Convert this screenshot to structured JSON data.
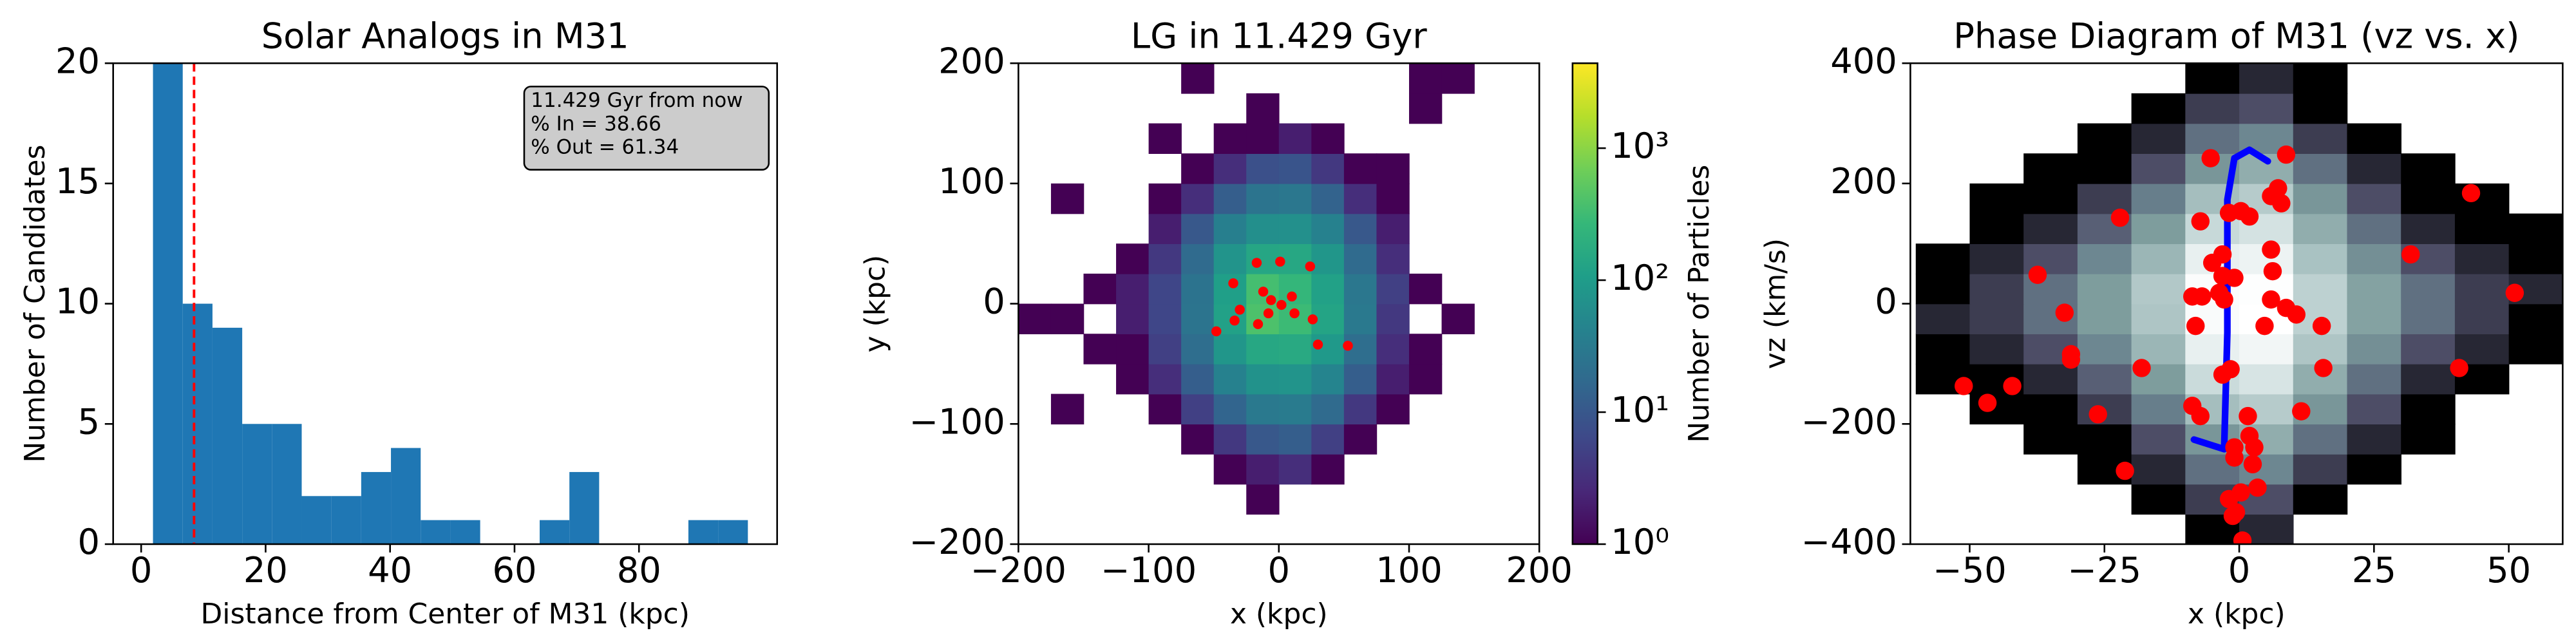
{
  "chart_data": [
    {
      "type": "histogram",
      "title": "Solar Analogs in M31",
      "x_label": "Distance from Center of M31 (kpc)",
      "y_label": "Number of Candidates",
      "bins": [
        1.9,
        6.68,
        11.46,
        16.24,
        21.02,
        25.8,
        30.58,
        35.36,
        40.14,
        44.92,
        49.7,
        54.48,
        59.26,
        64.04,
        68.82,
        73.6,
        78.38,
        83.16,
        87.94,
        92.72,
        97.5
      ],
      "values": [
        22,
        10,
        9,
        5,
        5,
        2,
        2,
        3,
        4,
        1,
        1,
        0,
        0,
        1,
        3,
        0,
        0,
        0,
        1,
        1
      ],
      "color": "#1f77b4",
      "vline": 8.5,
      "vline_color": "#ff0000",
      "annotations": [
        "11.429 Gyr from now",
        "% In = 38.66",
        "% Out = 61.34"
      ],
      "xlim": [
        -4.5,
        102.2
      ],
      "ylim": [
        0,
        20
      ],
      "xticks": [
        0,
        20,
        40,
        60,
        80
      ],
      "yticks": [
        0,
        5,
        10,
        15,
        20
      ]
    },
    {
      "type": "hist2d",
      "title": "LG in 11.429 Gyr",
      "x_label": "x (kpc)",
      "y_label": "y (kpc)",
      "colorbar_label": "Number of Particles",
      "colormap": "viridis",
      "norm": "log",
      "clim": [
        1,
        4400
      ],
      "colorbar_ticks": [
        {
          "value": 1,
          "label": "10⁰"
        },
        {
          "value": 10,
          "label": "10¹"
        },
        {
          "value": 100,
          "label": "10²"
        },
        {
          "value": 1000,
          "label": "10³"
        }
      ],
      "xbins": [
        -200,
        -175,
        -150,
        -125,
        -100,
        -75,
        -50,
        -25,
        0,
        25,
        50,
        75,
        100,
        125,
        150,
        175,
        200
      ],
      "ybins": [
        -200,
        -175,
        -150,
        -125,
        -100,
        -75,
        -50,
        -25,
        0,
        25,
        50,
        75,
        100,
        125,
        150,
        175,
        200
      ],
      "counts": [
        [
          0,
          0,
          0,
          0,
          0,
          0,
          0,
          0,
          0,
          0,
          0,
          0,
          0,
          0,
          0,
          0
        ],
        [
          0,
          0,
          0,
          0,
          0,
          0,
          0,
          1,
          0,
          0,
          0,
          0,
          0,
          0,
          0,
          0
        ],
        [
          0,
          0,
          0,
          0,
          0,
          0,
          1,
          2,
          3,
          1,
          0,
          0,
          0,
          0,
          0,
          0
        ],
        [
          0,
          0,
          0,
          0,
          0,
          1,
          4,
          10,
          12,
          5,
          1,
          0,
          0,
          0,
          0,
          0
        ],
        [
          0,
          1,
          0,
          0,
          1,
          5,
          15,
          30,
          32,
          18,
          4,
          1,
          0,
          0,
          0,
          0
        ],
        [
          0,
          0,
          0,
          1,
          3,
          12,
          40,
          70,
          75,
          45,
          12,
          2,
          1,
          0,
          0,
          0
        ],
        [
          0,
          0,
          1,
          1,
          5,
          20,
          80,
          150,
          160,
          90,
          20,
          3,
          1,
          0,
          0,
          0
        ],
        [
          1,
          1,
          0,
          2,
          6,
          25,
          120,
          400,
          300,
          130,
          30,
          4,
          0,
          1,
          0,
          0
        ],
        [
          0,
          0,
          1,
          2,
          6,
          24,
          110,
          350,
          260,
          120,
          28,
          5,
          1,
          0,
          0,
          0
        ],
        [
          0,
          0,
          0,
          1,
          4,
          18,
          75,
          140,
          150,
          80,
          18,
          3,
          0,
          0,
          0,
          0
        ],
        [
          0,
          0,
          0,
          0,
          2,
          10,
          38,
          65,
          66,
          40,
          10,
          2,
          0,
          0,
          0,
          0
        ],
        [
          0,
          1,
          0,
          0,
          1,
          3,
          12,
          25,
          28,
          14,
          3,
          1,
          0,
          0,
          0,
          0
        ],
        [
          0,
          0,
          0,
          0,
          0,
          1,
          3,
          8,
          9,
          4,
          1,
          1,
          0,
          0,
          0,
          0
        ],
        [
          0,
          0,
          0,
          0,
          1,
          0,
          1,
          1,
          2,
          1,
          0,
          0,
          0,
          0,
          0,
          0
        ],
        [
          0,
          0,
          0,
          0,
          0,
          0,
          0,
          1,
          0,
          0,
          0,
          0,
          1,
          0,
          0,
          0
        ],
        [
          0,
          0,
          0,
          0,
          0,
          1,
          0,
          0,
          0,
          0,
          0,
          0,
          1,
          1,
          0,
          0
        ]
      ],
      "scatter": {
        "color": "#ff0000",
        "x": [
          -17,
          1,
          24,
          -35,
          -12,
          -6,
          2,
          10,
          -8,
          12,
          -30,
          -34,
          -48,
          26,
          30,
          53,
          -16
        ],
        "y": [
          34,
          35,
          31,
          17,
          10,
          3,
          -1,
          6,
          -8,
          -8,
          -5,
          -14,
          -23,
          -13,
          -34,
          -35,
          -17
        ]
      },
      "xlim": [
        -200,
        200
      ],
      "ylim": [
        -200,
        200
      ],
      "xticks": [
        {
          "value": -200,
          "label": "−200"
        },
        {
          "value": -100,
          "label": "−100"
        },
        0,
        100,
        200
      ],
      "yticks": [
        {
          "value": -200,
          "label": "−200"
        },
        {
          "value": -100,
          "label": "−100"
        },
        0,
        100,
        200
      ]
    },
    {
      "type": "hist2d",
      "title": "Phase Diagram of M31 (vz vs. x)",
      "x_label": "x (kpc)",
      "y_label": "vz (km/s)",
      "colormap": "bone",
      "norm": "log",
      "xbins": [
        -60,
        -50,
        -40,
        -30,
        -20,
        -10,
        0,
        10,
        20,
        30,
        40,
        50,
        60
      ],
      "ybins": [
        -400,
        -350,
        -300,
        -250,
        -200,
        -150,
        -100,
        -50,
        0,
        50,
        100,
        150,
        200,
        250,
        300,
        350,
        400
      ],
      "counts": [
        [
          0,
          0,
          0,
          0,
          0,
          1,
          2,
          0,
          0,
          0,
          0,
          0
        ],
        [
          0,
          0,
          0,
          0,
          1,
          3,
          4,
          1,
          0,
          0,
          0,
          0
        ],
        [
          0,
          0,
          0,
          1,
          2,
          6,
          8,
          3,
          1,
          0,
          0,
          0
        ],
        [
          0,
          0,
          1,
          1,
          4,
          10,
          14,
          6,
          2,
          1,
          0,
          0
        ],
        [
          0,
          1,
          1,
          3,
          7,
          18,
          22,
          10,
          4,
          1,
          0,
          0
        ],
        [
          1,
          1,
          2,
          5,
          11,
          28,
          32,
          14,
          6,
          2,
          1,
          0
        ],
        [
          1,
          2,
          4,
          8,
          16,
          38,
          42,
          20,
          9,
          4,
          2,
          1
        ],
        [
          2,
          3,
          6,
          11,
          20,
          45,
          48,
          24,
          12,
          6,
          3,
          1
        ],
        [
          1,
          3,
          6,
          11,
          21,
          46,
          47,
          24,
          12,
          6,
          3,
          2
        ],
        [
          1,
          2,
          4,
          8,
          16,
          38,
          40,
          19,
          9,
          4,
          2,
          1
        ],
        [
          0,
          1,
          2,
          5,
          11,
          27,
          31,
          14,
          6,
          2,
          1,
          1
        ],
        [
          0,
          1,
          1,
          3,
          7,
          18,
          22,
          10,
          4,
          1,
          1,
          0
        ],
        [
          0,
          0,
          1,
          1,
          4,
          10,
          14,
          6,
          2,
          1,
          0,
          0
        ],
        [
          0,
          0,
          0,
          1,
          2,
          6,
          8,
          3,
          1,
          0,
          0,
          0
        ],
        [
          0,
          0,
          0,
          0,
          1,
          3,
          4,
          1,
          0,
          0,
          0,
          0
        ],
        [
          0,
          0,
          0,
          0,
          0,
          1,
          2,
          1,
          0,
          0,
          0,
          0
        ]
      ],
      "scatter": {
        "color": "#ff0000",
        "x": [
          -5.3,
          8.7,
          -22.1,
          -7.2,
          -1.9,
          0.3,
          1.9,
          5.9,
          7.8,
          7.2,
          -3.1,
          -5.0,
          -3.1,
          -0.9,
          5.9,
          6.2,
          -37.4,
          31.8,
          51.1,
          -3.7,
          -2.8,
          -8.7,
          -6.9,
          5.9,
          8.7,
          10.6,
          -32.4,
          -8.1,
          15.3,
          4.7,
          -31.2,
          -31.2,
          -18.1,
          15.6,
          40.8,
          -1.6,
          -3.1,
          -42.1,
          -51.1,
          -46.7,
          -26.2,
          -8.7,
          -7.2,
          11.5,
          1.6,
          1.9,
          2.8,
          -0.9,
          -0.9,
          -21.2,
          0.3,
          3.4,
          -0.6,
          -1.9,
          0.6,
          -1.2,
          43.0,
          2.5
        ],
        "y": [
          242,
          248,
          143,
          137,
          151,
          154,
          145,
          179,
          167,
          192,
          82,
          68,
          46,
          43,
          90,
          54,
          48,
          82,
          18,
          18,
          7,
          12,
          12,
          7,
          -7,
          -18,
          -15,
          -37,
          -37,
          -37,
          -84,
          -93,
          -107,
          -107,
          -107,
          -109,
          -118,
          -137,
          -137,
          -165,
          -184,
          -170,
          -187,
          -179,
          -187,
          -220,
          -239,
          -239,
          -256,
          -278,
          -314,
          -306,
          -347,
          -325,
          -394,
          -353,
          184,
          -267
        ]
      },
      "line": {
        "color": "#0000ff",
        "x": [
          -8.4,
          -2.8,
          -2.2,
          -2.2,
          -0.9,
          1.9,
          5.3
        ],
        "y": [
          -226,
          -242,
          -48,
          173,
          242,
          256,
          237
        ]
      },
      "xlim": [
        -61,
        60
      ],
      "ylim": [
        -400,
        400
      ],
      "xticks": [
        {
          "value": -50,
          "label": "−50"
        },
        {
          "value": -25,
          "label": "−25"
        },
        0,
        25,
        50
      ],
      "yticks": [
        {
          "value": -400,
          "label": "−400"
        },
        {
          "value": -200,
          "label": "−200"
        },
        0,
        200,
        400
      ]
    }
  ]
}
